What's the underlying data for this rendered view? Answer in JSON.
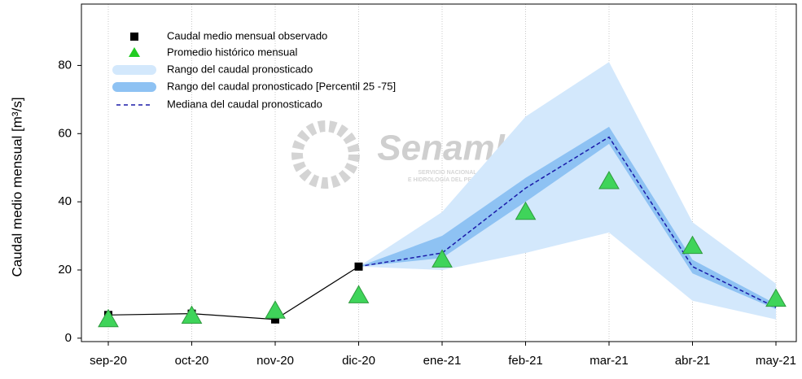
{
  "chart_data": {
    "type": "line",
    "ylabel": "Caudal medio mensual  [m³/s]",
    "watermark": {
      "title": "Senamhi",
      "subtitle_1": "SERVICIO NACIONAL DE METEOROLOGÍA",
      "subtitle_2": "E HIDROLOGÍA DEL PERÚ"
    },
    "categories": [
      "sep-20",
      "oct-20",
      "nov-20",
      "dic-20",
      "ene-21",
      "feb-21",
      "mar-21",
      "abr-21",
      "may-21"
    ],
    "ylim": [
      -1,
      98
    ],
    "yticks": [
      0,
      20,
      40,
      60,
      80
    ],
    "grid": true,
    "legend": "upper left",
    "series": [
      {
        "name": "Caudal medio mensual observado",
        "kind": "line-markers",
        "color": "#000000",
        "values": [
          6.8,
          7.2,
          5.5,
          21,
          null,
          null,
          null,
          null,
          null
        ]
      },
      {
        "name": "Promedio histórico mensual",
        "kind": "triangles",
        "color": "#3fd45a",
        "values": [
          5.5,
          6.5,
          8,
          12.5,
          23,
          37,
          46,
          27,
          11.5
        ]
      },
      {
        "name": "Rango del caudal pronosticado",
        "kind": "band",
        "color": "#d3e8fc",
        "low": [
          null,
          null,
          null,
          21,
          20,
          25,
          31,
          11,
          5.5
        ],
        "high": [
          null,
          null,
          null,
          21,
          37,
          65,
          81,
          34,
          16
        ]
      },
      {
        "name": "Rango del caudal pronosticado [Percentil 25 -75]",
        "kind": "band",
        "color": "#8ec2f3",
        "low": [
          null,
          null,
          null,
          21,
          23.5,
          40,
          57,
          19,
          8.5
        ],
        "high": [
          null,
          null,
          null,
          21,
          30,
          47,
          62,
          23,
          10
        ]
      },
      {
        "name": "Mediana del caudal pronosticado",
        "kind": "dashed",
        "color": "#1a1aa8",
        "values": [
          null,
          null,
          null,
          21,
          25,
          44,
          59,
          21,
          9
        ]
      }
    ]
  }
}
